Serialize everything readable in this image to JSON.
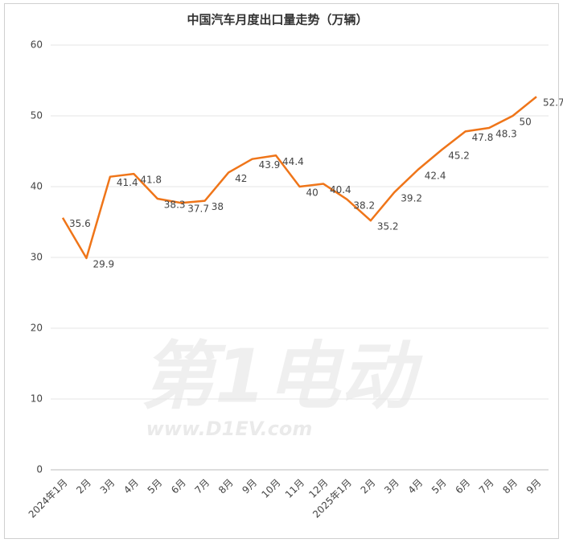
{
  "chart_data": {
    "type": "line",
    "title": "中国汽车月度出口量走势（万辆）",
    "categories": [
      "2024年1月",
      "2月",
      "3月",
      "4月",
      "5月",
      "6月",
      "7月",
      "8月",
      "9月",
      "10月",
      "11月",
      "12月",
      "2025年1月",
      "2月",
      "3月",
      "4月",
      "5月",
      "6月",
      "7月",
      "8月",
      "9月"
    ],
    "values": [
      35.6,
      29.9,
      41.4,
      41.8,
      38.3,
      37.7,
      38,
      42,
      43.9,
      44.4,
      40,
      40.4,
      38.2,
      35.2,
      39.2,
      42.4,
      45.2,
      47.8,
      48.3,
      50,
      52.7
    ],
    "color": "#ef7519",
    "ylim": [
      0,
      60
    ],
    "yticks": [
      0,
      10,
      20,
      30,
      40,
      50,
      60
    ],
    "grid": true,
    "watermark": "第1电动",
    "watermark_url": "www.D1EV.com"
  }
}
